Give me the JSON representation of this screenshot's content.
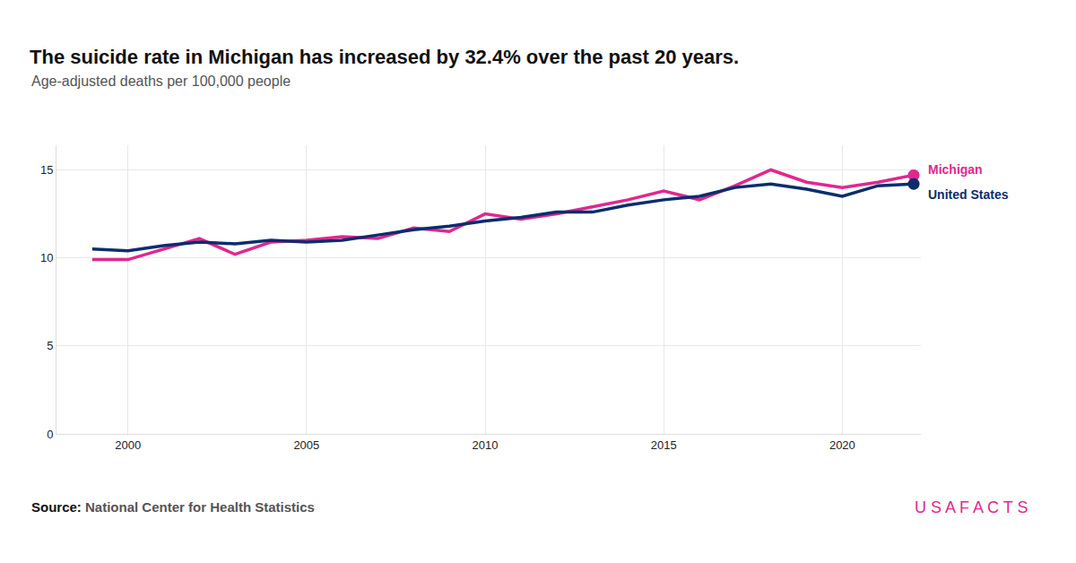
{
  "chart_data": {
    "type": "line",
    "title": "The suicide rate in Michigan has increased by 32.4% over the past 20 years.",
    "subtitle": "Age-adjusted deaths per 100,000 people",
    "source_label": "Source:",
    "source": "National Center for Health Statistics",
    "brand": "USAFACTS",
    "x": [
      1999,
      2000,
      2001,
      2002,
      2003,
      2004,
      2005,
      2006,
      2007,
      2008,
      2009,
      2010,
      2011,
      2012,
      2013,
      2014,
      2015,
      2016,
      2017,
      2018,
      2019,
      2020,
      2021,
      2022
    ],
    "series": [
      {
        "name": "Michigan",
        "color": "#e0288f",
        "marker": "end",
        "values": [
          9.9,
          9.9,
          10.5,
          11.1,
          10.2,
          10.9,
          11.0,
          11.2,
          11.1,
          11.7,
          11.5,
          12.5,
          12.2,
          12.5,
          12.9,
          13.3,
          13.8,
          13.3,
          14.1,
          15.0,
          14.3,
          14.0,
          14.3,
          14.7
        ]
      },
      {
        "name": "United States",
        "color": "#0b2d6e",
        "marker": "end",
        "values": [
          10.5,
          10.4,
          10.7,
          10.9,
          10.8,
          11.0,
          10.9,
          11.0,
          11.3,
          11.6,
          11.8,
          12.1,
          12.3,
          12.6,
          12.6,
          13.0,
          13.3,
          13.5,
          14.0,
          14.2,
          13.9,
          13.5,
          14.1,
          14.2
        ]
      }
    ],
    "xlim": [
      1998,
      2022.2
    ],
    "xticks": [
      2000,
      2005,
      2010,
      2015,
      2020
    ],
    "ylim": [
      0,
      16.4
    ],
    "yticks": [
      0,
      5,
      10,
      15
    ],
    "grid": true
  }
}
